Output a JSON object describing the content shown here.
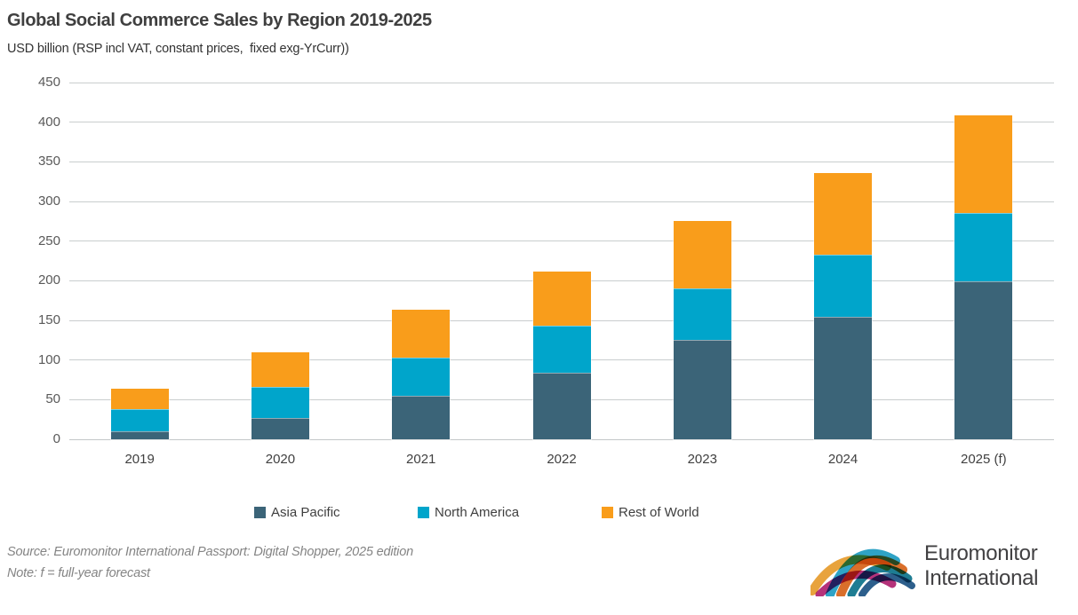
{
  "header": {
    "title": "Global Social Commerce Sales by Region 2019-2025",
    "subtitle": "USD billion (RSP incl VAT, constant prices,  fixed exg-YrCurr))"
  },
  "chart_data": {
    "type": "bar",
    "stacked": true,
    "title": "Global Social Commerce Sales by Region 2019-2025",
    "subtitle": "USD billion (RSP incl VAT, constant prices,  fixed exg-YrCurr))",
    "categories": [
      "2019",
      "2020",
      "2021",
      "2022",
      "2023",
      "2024",
      "2025 (f)"
    ],
    "series": [
      {
        "name": "Asia Pacific",
        "color": "#3B6478",
        "values": [
          10,
          27,
          55,
          84,
          125,
          154,
          199
        ]
      },
      {
        "name": "North America",
        "color": "#00A5CB",
        "values": [
          28,
          39,
          48,
          59,
          65,
          79,
          87
        ]
      },
      {
        "name": "Rest of World",
        "color": "#F99D1B",
        "values": [
          26,
          44,
          60,
          69,
          85,
          103,
          123
        ]
      }
    ],
    "ylim": [
      0,
      450
    ],
    "ytick_step": 50,
    "grid": true,
    "legend_position": "bottom",
    "xlabel": "",
    "ylabel": ""
  },
  "footer": {
    "source": "Source: Euromonitor International Passport: Digital Shopper, 2025 edition",
    "note": "Note: f = full-year forecast"
  },
  "logo": {
    "text_line1": "Euromonitor",
    "text_line2": "International",
    "arc_colors": [
      "#E8A33D",
      "#2FA3C6",
      "#D96F2B",
      "#1E7D93",
      "#B5327A",
      "#2D5F8C"
    ]
  }
}
